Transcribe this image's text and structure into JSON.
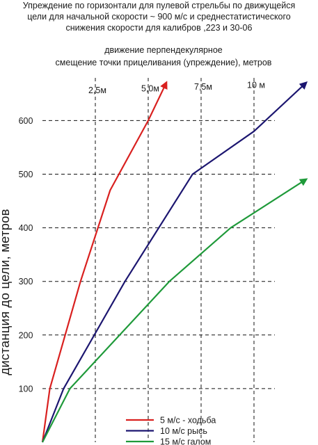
{
  "chart_data": {
    "type": "line",
    "title_lines": [
      "Упреждение по горизонтали для пулевой стрельбы по движущейся",
      "цели для начальной скорости ~ 900 м/с и среднестатистического",
      "снижения скорости для калибров ,223 и 30-06"
    ],
    "xlabel_lines": [
      "движение перпендекулярное",
      "смещение точки прицеливания (упреждение), метров"
    ],
    "ylabel": "дистанция до цели, метров",
    "x_ticks": [
      {
        "value": 2.5,
        "label": "2,5м"
      },
      {
        "value": 5.0,
        "label": "5,0м"
      },
      {
        "value": 7.5,
        "label": "7,5м"
      },
      {
        "value": 10.0,
        "label": "10 м"
      }
    ],
    "y_ticks": [
      {
        "value": 100,
        "label": "100"
      },
      {
        "value": 200,
        "label": "200"
      },
      {
        "value": 300,
        "label": "300"
      },
      {
        "value": 400,
        "label": "400"
      },
      {
        "value": 500,
        "label": "500"
      },
      {
        "value": 600,
        "label": "600"
      }
    ],
    "xlim": [
      0,
      12.5
    ],
    "ylim": [
      0,
      700
    ],
    "grid": "dashed",
    "legend_position": "bottom-center",
    "series": [
      {
        "name": "5 м/с - ходьба",
        "color": "#d9201f",
        "x": [
          0,
          0.35,
          1.8,
          3.2,
          5.0,
          5.85
        ],
        "y": [
          0,
          100,
          300,
          470,
          600,
          670
        ]
      },
      {
        "name": "10 м/с рысь",
        "color": "#1c1670",
        "x": [
          0,
          1.0,
          3.9,
          7.1,
          10.0,
          12.45
        ],
        "y": [
          0,
          100,
          300,
          500,
          580,
          670
        ]
      },
      {
        "name": "15 м/с галом",
        "color": "#1f9a3a",
        "x": [
          0,
          1.3,
          6.0,
          8.9,
          12.45
        ],
        "y": [
          0,
          100,
          300,
          400,
          490
        ]
      }
    ]
  }
}
